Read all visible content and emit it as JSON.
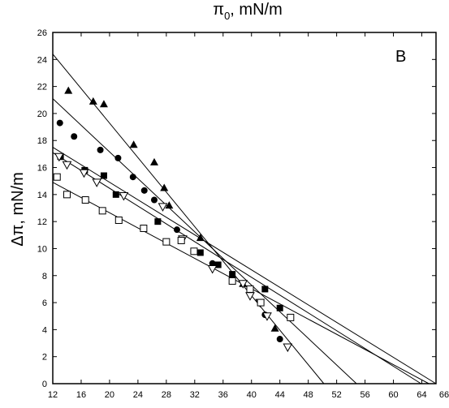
{
  "chart_data": {
    "type": "scatter",
    "title": "π0, mN/m",
    "title_main": "π",
    "title_sub": "0",
    "title_unit": ", mN/m",
    "ylabel": "Δπ, mN/m",
    "xlabel": "",
    "panel_label": "B",
    "xlim": [
      12,
      66
    ],
    "ylim": [
      0,
      26
    ],
    "xticks": [
      12,
      16,
      20,
      24,
      28,
      32,
      36,
      40,
      44,
      48,
      52,
      56,
      60,
      64
    ],
    "xtick_labels": [
      "12",
      "16",
      "20",
      "24",
      "28",
      "32",
      "36",
      "40",
      "44",
      "48",
      "52",
      "56",
      "60",
      "64"
    ],
    "extra_xtick_labels": [
      "66"
    ],
    "yticks": [
      0,
      2,
      4,
      6,
      8,
      10,
      12,
      14,
      16,
      18,
      20,
      22,
      24,
      26
    ],
    "ytick_labels": [
      "0",
      "2",
      "4",
      "6",
      "8",
      "10",
      "12",
      "14",
      "16",
      "18",
      "20",
      "22",
      "24",
      "26"
    ],
    "grid": false,
    "legend": "none",
    "series": [
      {
        "marker": "triangle-up-filled",
        "points": [
          [
            14.2,
            21.7
          ],
          [
            17.7,
            20.9
          ],
          [
            19.2,
            20.7
          ],
          [
            23.4,
            17.7
          ],
          [
            26.3,
            16.4
          ],
          [
            27.7,
            14.5
          ],
          [
            28.4,
            13.2
          ],
          [
            32.8,
            10.8
          ],
          [
            38.8,
            7.4
          ],
          [
            43.3,
            4.1
          ]
        ],
        "fit": [
          [
            12,
            24.4
          ],
          [
            50.2,
            0
          ]
        ]
      },
      {
        "marker": "circle-filled",
        "points": [
          [
            13.0,
            19.3
          ],
          [
            15.0,
            18.3
          ],
          [
            18.7,
            17.3
          ],
          [
            21.2,
            16.7
          ],
          [
            23.3,
            15.3
          ],
          [
            24.9,
            14.3
          ],
          [
            26.3,
            13.6
          ],
          [
            29.5,
            11.4
          ],
          [
            34.5,
            8.9
          ],
          [
            41.9,
            5.1
          ],
          [
            44.0,
            3.3
          ]
        ],
        "fit": [
          [
            12,
            21.1
          ],
          [
            54.8,
            0
          ]
        ]
      },
      {
        "marker": "square-filled",
        "points": [
          [
            13.1,
            16.8
          ],
          [
            16.5,
            15.8
          ],
          [
            19.2,
            15.4
          ],
          [
            20.9,
            14.0
          ],
          [
            26.8,
            12.0
          ],
          [
            32.8,
            9.7
          ],
          [
            35.3,
            8.8
          ],
          [
            37.3,
            8.1
          ],
          [
            41.9,
            7.0
          ],
          [
            44.0,
            5.6
          ]
        ],
        "fit": [
          [
            12,
            17.5
          ],
          [
            66,
            0
          ]
        ]
      },
      {
        "marker": "triangle-down-open",
        "points": [
          [
            12.9,
            16.8
          ],
          [
            14.0,
            16.2
          ],
          [
            16.4,
            15.6
          ],
          [
            18.2,
            14.9
          ],
          [
            22.0,
            13.9
          ],
          [
            27.5,
            13.1
          ],
          [
            30.3,
            10.7
          ],
          [
            34.5,
            8.5
          ],
          [
            38.8,
            7.4
          ],
          [
            39.8,
            6.5
          ],
          [
            41.2,
            6.0
          ],
          [
            42.2,
            5.0
          ],
          [
            45.1,
            2.7
          ]
        ],
        "fit": [
          [
            12,
            17.1
          ],
          [
            63.9,
            0
          ]
        ]
      },
      {
        "marker": "square-open",
        "points": [
          [
            12.6,
            15.3
          ],
          [
            14.0,
            14.0
          ],
          [
            16.6,
            13.6
          ],
          [
            19.0,
            12.8
          ],
          [
            21.3,
            12.1
          ],
          [
            24.8,
            11.5
          ],
          [
            28.0,
            10.5
          ],
          [
            30.1,
            10.6
          ],
          [
            31.9,
            9.8
          ],
          [
            37.3,
            7.6
          ],
          [
            39.8,
            7.0
          ],
          [
            41.3,
            6.0
          ],
          [
            45.5,
            4.9
          ]
        ],
        "fit": [
          [
            12,
            14.9
          ],
          [
            65.0,
            0
          ]
        ]
      }
    ]
  }
}
